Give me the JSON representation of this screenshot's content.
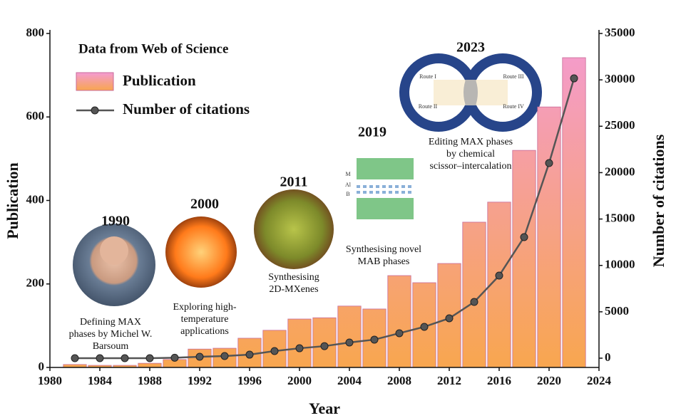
{
  "chart_data": {
    "type": "bar_line",
    "x_label": "Year",
    "y_label": "Publication",
    "y2_label": "Number of citations",
    "legend_title": "Data from Web of Science",
    "x": [
      1982,
      1984,
      1986,
      1988,
      1990,
      1992,
      1994,
      1996,
      1998,
      2000,
      2002,
      2004,
      2006,
      2008,
      2010,
      2012,
      2014,
      2016,
      2018,
      2020,
      2022
    ],
    "series": [
      {
        "name": "Publication",
        "type": "bar",
        "color": [
          "#f49bd2",
          "#f8a64f"
        ],
        "values": [
          7,
          5,
          5,
          10,
          19,
          44,
          46,
          70,
          89,
          116,
          119,
          147,
          140,
          220,
          203,
          249,
          348,
          396,
          520,
          624,
          742
        ]
      },
      {
        "name": "Number of citations",
        "type": "line",
        "axis": "y2",
        "color": "#555555",
        "values": [
          0,
          0,
          0,
          0,
          50,
          150,
          230,
          380,
          770,
          1070,
          1300,
          1690,
          2000,
          2690,
          3380,
          4300,
          6060,
          8900,
          13050,
          21030,
          30160
        ]
      }
    ],
    "xlim": [
      1980,
      2024
    ],
    "xticks": [
      1980,
      1984,
      1988,
      1992,
      1996,
      2000,
      2004,
      2008,
      2012,
      2016,
      2020,
      2024
    ],
    "ylim": [
      0,
      800
    ],
    "yticks": [
      0,
      200,
      400,
      600,
      800
    ],
    "y2lim": [
      0,
      35000
    ],
    "y2ticks": [
      0,
      5000,
      10000,
      15000,
      20000,
      25000,
      30000,
      35000
    ],
    "annotations": [
      {
        "year": "1990",
        "caption": [
          "Defining MAX",
          "phases by Michel W.",
          "Barsoum"
        ]
      },
      {
        "year": "2000",
        "caption": [
          "Exploring high-",
          "temperature",
          "applications"
        ]
      },
      {
        "year": "2011",
        "caption": [
          "Synthesising",
          "2D-MXenes"
        ]
      },
      {
        "year": "2019",
        "caption": [
          "Synthesising novel",
          "MAB phases"
        ],
        "image_labels": [
          "M",
          "Al",
          "B"
        ]
      },
      {
        "year": "2023",
        "caption": [
          "Editing MAX phases",
          "by chemical",
          "scissor–intercalation"
        ],
        "image_labels": [
          "Route I",
          "Route II",
          "Route III",
          "Route IV"
        ]
      }
    ]
  }
}
